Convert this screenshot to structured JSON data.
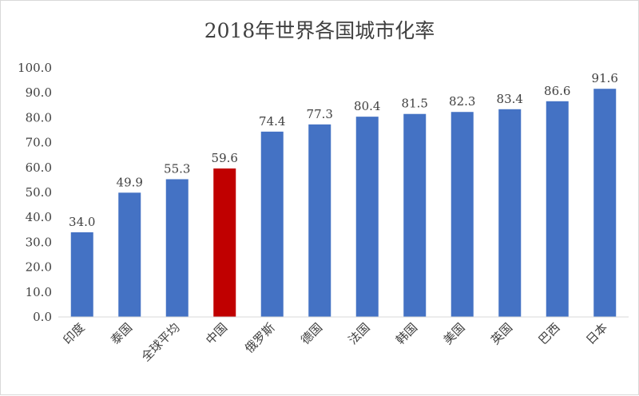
{
  "chart_data": {
    "type": "bar",
    "title": "2018年世界各国城市化率",
    "categories": [
      "印度",
      "泰国",
      "全球平均",
      "中国",
      "俄罗斯",
      "德国",
      "法国",
      "韩国",
      "美国",
      "英国",
      "巴西",
      "日本"
    ],
    "values": [
      34.0,
      49.9,
      55.3,
      59.6,
      74.4,
      77.3,
      80.4,
      81.5,
      82.3,
      83.4,
      86.6,
      91.6
    ],
    "data_labels": [
      "34.0",
      "49.9",
      "55.3",
      "59.6",
      "74.4",
      "77.3",
      "80.4",
      "81.5",
      "82.3",
      "83.4",
      "86.6",
      "91.6"
    ],
    "ylim": [
      0,
      100
    ],
    "yticks": [
      "0.0",
      "10.0",
      "20.0",
      "30.0",
      "40.0",
      "50.0",
      "60.0",
      "70.0",
      "80.0",
      "90.0",
      "100.0"
    ],
    "grid": false,
    "legend": "none",
    "xlabel": "",
    "ylabel": "",
    "bar_color": "#4472c4",
    "highlight_color": "#c00000",
    "highlight_category": "中国"
  }
}
